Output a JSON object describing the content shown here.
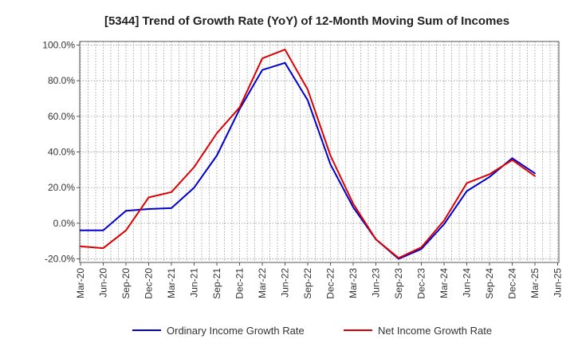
{
  "chart_data": {
    "type": "line",
    "title": "[5344]  Trend of Growth Rate (YoY) of 12-Month Moving Sum of Incomes",
    "xlabel": "",
    "ylabel": "",
    "x": [
      "Mar-20",
      "Jun-20",
      "Sep-20",
      "Dec-20",
      "Mar-21",
      "Jun-21",
      "Sep-21",
      "Dec-21",
      "Mar-22",
      "Jun-22",
      "Sep-22",
      "Dec-22",
      "Mar-23",
      "Jun-23",
      "Sep-23",
      "Dec-23",
      "Mar-24",
      "Jun-24",
      "Sep-24",
      "Dec-24",
      "Mar-25",
      "Jun-25"
    ],
    "ylim": [
      -22,
      102
    ],
    "yticks": [
      -20,
      0,
      20,
      40,
      60,
      80,
      100
    ],
    "ytick_labels": [
      "-20.0%",
      "0.0%",
      "20.0%",
      "40.0%",
      "60.0%",
      "80.0%",
      "100.0%"
    ],
    "grid": true,
    "legend_position": "bottom",
    "series": [
      {
        "name": "Ordinary Income Growth Rate",
        "color": "#0000cc",
        "points": [
          [
            "Mar-20",
            -4.0
          ],
          [
            "Jun-20",
            -4.0
          ],
          [
            "Sep-20",
            7.0
          ],
          [
            "Dec-20",
            8.0
          ],
          [
            "Mar-21",
            8.5
          ],
          [
            "Jun-21",
            20.0
          ],
          [
            "Sep-21",
            38.0
          ],
          [
            "Dec-21",
            64.0
          ],
          [
            "Mar-22",
            86.0
          ],
          [
            "Jun-22",
            90.0
          ],
          [
            "Sep-22",
            69.0
          ],
          [
            "Dec-22",
            33.0
          ],
          [
            "Mar-23",
            9.0
          ],
          [
            "Jun-23",
            -9.0
          ],
          [
            "Sep-23",
            -20.0
          ],
          [
            "Dec-23",
            -14.5
          ],
          [
            "Mar-24",
            -0.5
          ],
          [
            "Jun-24",
            18.0
          ],
          [
            "Sep-24",
            26.0
          ],
          [
            "Dec-24",
            36.5
          ],
          [
            "Mar-25",
            28.0
          ]
        ]
      },
      {
        "name": "Net Income Growth Rate",
        "color": "#dd0000",
        "points": [
          [
            "Mar-20",
            -13.0
          ],
          [
            "Jun-20",
            -14.0
          ],
          [
            "Sep-20",
            -4.0
          ],
          [
            "Dec-20",
            14.5
          ],
          [
            "Mar-21",
            17.5
          ],
          [
            "Jun-21",
            31.5
          ],
          [
            "Sep-21",
            50.5
          ],
          [
            "Dec-21",
            65.0
          ],
          [
            "Mar-22",
            92.5
          ],
          [
            "Jun-22",
            97.5
          ],
          [
            "Sep-22",
            75.0
          ],
          [
            "Dec-22",
            38.0
          ],
          [
            "Mar-23",
            11.0
          ],
          [
            "Jun-23",
            -9.0
          ],
          [
            "Sep-23",
            -19.5
          ],
          [
            "Dec-23",
            -13.5
          ],
          [
            "Mar-24",
            1.5
          ],
          [
            "Jun-24",
            22.5
          ],
          [
            "Sep-24",
            27.5
          ],
          [
            "Dec-24",
            35.5
          ],
          [
            "Mar-25",
            26.5
          ]
        ]
      }
    ]
  }
}
